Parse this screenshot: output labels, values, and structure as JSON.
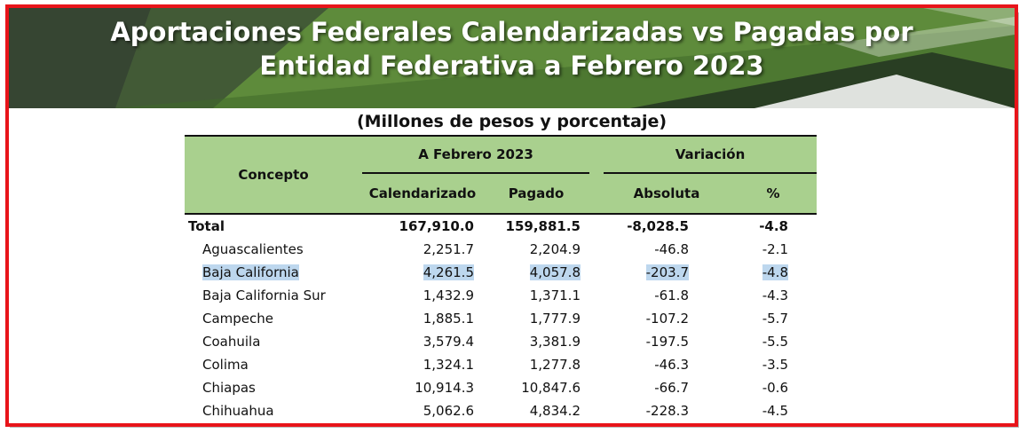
{
  "header": {
    "title_line1": "Aportaciones Federales Calendarizadas vs Pagadas por",
    "title_line2": "Entidad Federativa a Febrero 2023"
  },
  "subtitle": "(Millones de pesos y porcentaje)",
  "table": {
    "concept_header": "Concepto",
    "group1_header": "A Febrero 2023",
    "group2_header": "Variación",
    "col_calendarizado": "Calendarizado",
    "col_pagado": "Pagado",
    "col_absoluta": "Absoluta",
    "col_pct": "%",
    "total": {
      "concepto": "Total",
      "calendarizado": "167,910.0",
      "pagado": "159,881.5",
      "absoluta": "-8,028.5",
      "pct": "-4.8"
    },
    "rows": [
      {
        "concepto": "Aguascalientes",
        "calendarizado": "2,251.7",
        "pagado": "2,204.9",
        "absoluta": "-46.8",
        "pct": "-2.1"
      },
      {
        "concepto": "Baja California",
        "calendarizado": "4,261.5",
        "pagado": "4,057.8",
        "absoluta": "-203.7",
        "pct": "-4.8"
      },
      {
        "concepto": "Baja California Sur",
        "calendarizado": "1,432.9",
        "pagado": "1,371.1",
        "absoluta": "-61.8",
        "pct": "-4.3"
      },
      {
        "concepto": "Campeche",
        "calendarizado": "1,885.1",
        "pagado": "1,777.9",
        "absoluta": "-107.2",
        "pct": "-5.7"
      },
      {
        "concepto": "Coahuila",
        "calendarizado": "3,579.4",
        "pagado": "3,381.9",
        "absoluta": "-197.5",
        "pct": "-5.5"
      },
      {
        "concepto": "Colima",
        "calendarizado": "1,324.1",
        "pagado": "1,277.8",
        "absoluta": "-46.3",
        "pct": "-3.5"
      },
      {
        "concepto": "Chiapas",
        "calendarizado": "10,914.3",
        "pagado": "10,847.6",
        "absoluta": "-66.7",
        "pct": "-0.6"
      },
      {
        "concepto": "Chihuahua",
        "calendarizado": "5,062.6",
        "pagado": "4,834.2",
        "absoluta": "-228.3",
        "pct": "-4.5"
      }
    ]
  },
  "colors": {
    "frame": "#e8141a",
    "banner_green": "#5d8a3a",
    "header_green": "#a9d08e",
    "selection": "#bdd7ee"
  }
}
